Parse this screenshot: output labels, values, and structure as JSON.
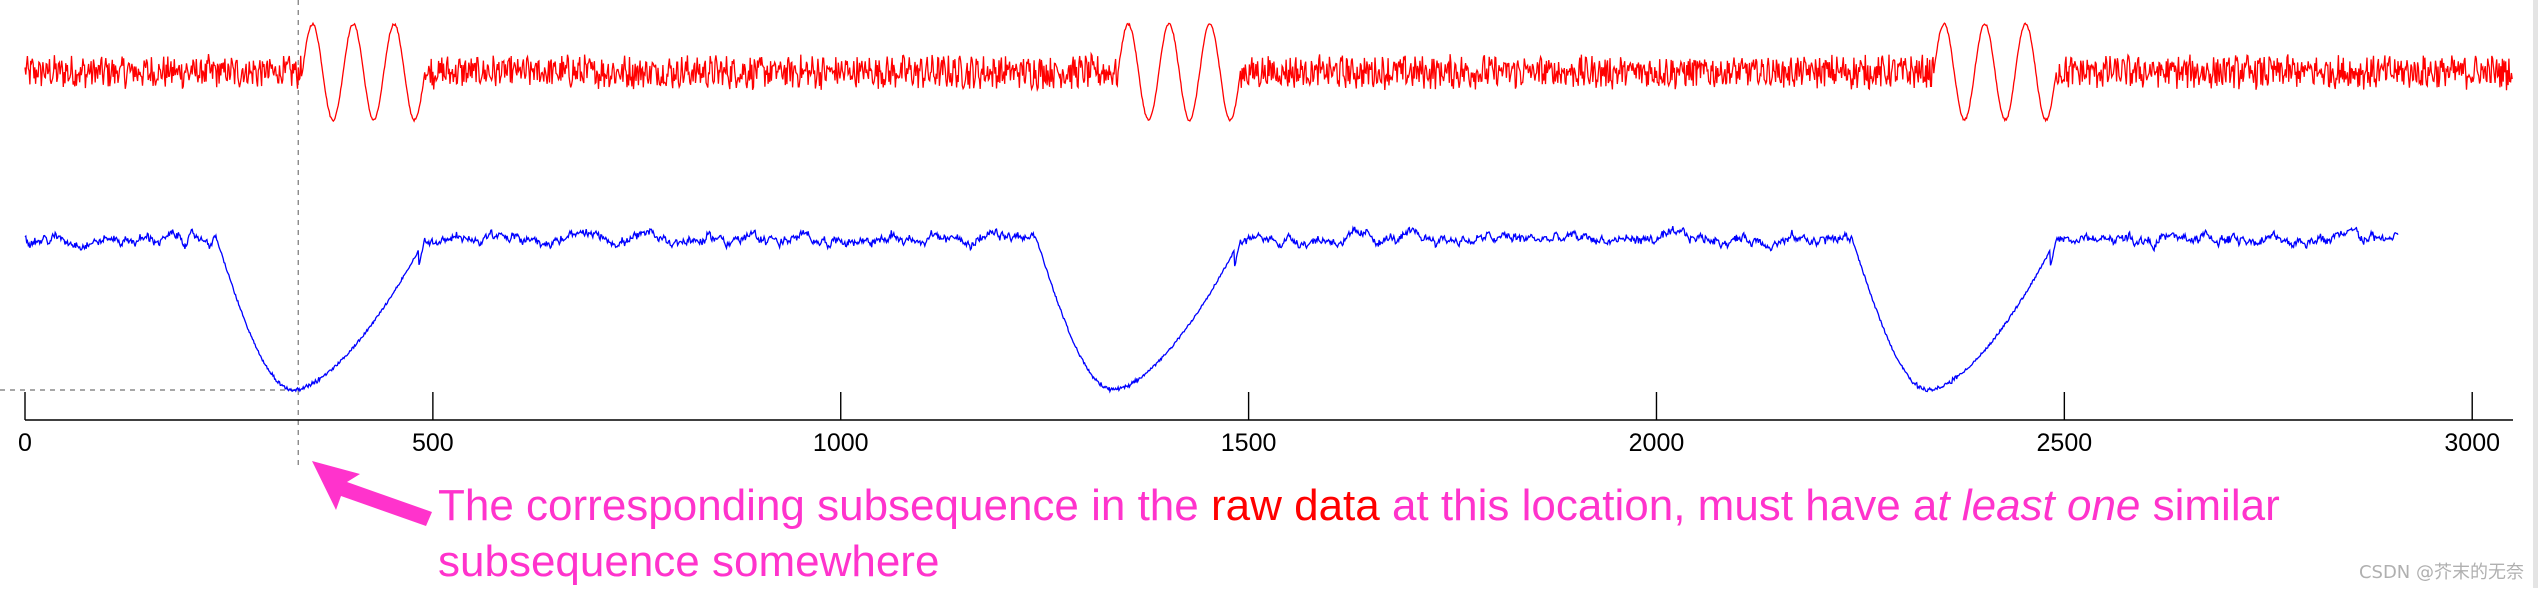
{
  "chart_data": {
    "type": "line",
    "title": "",
    "xlabel": "",
    "ylabel": "",
    "xlim": [
      0,
      3050
    ],
    "x_ticks": [
      0,
      500,
      1000,
      1500,
      2000,
      2500,
      3000
    ],
    "grid": false,
    "y_axis_visible": false,
    "series": [
      {
        "role": "raw-data",
        "color": "#ff0000",
        "length": 3050,
        "noise_amplitude": 0.3,
        "bursts": [
          {
            "start": 340,
            "end": 490,
            "cycles": 3,
            "amplitude": 1.0
          },
          {
            "start": 1340,
            "end": 1490,
            "cycles": 3,
            "amplitude": 1.0
          },
          {
            "start": 2340,
            "end": 2490,
            "cycles": 3,
            "amplitude": 1.0
          }
        ]
      },
      {
        "role": "derived-profile",
        "color": "#0000ff",
        "length": 2910,
        "baseline_noise": 0.06,
        "dips": [
          {
            "from": 235,
            "to": 490,
            "bottom": 330
          },
          {
            "from": 1240,
            "to": 1490,
            "bottom": 1335
          },
          {
            "from": 2240,
            "to": 2490,
            "bottom": 2335
          }
        ]
      }
    ],
    "reference_x": 335,
    "annotation": {
      "part1": "The corresponding subsequence in the ",
      "highlight": "raw data",
      "part2": " at this location, must have a",
      "italic": "t least one",
      "part3": " similar subsequence somewhere",
      "text_color": "#ff33cc",
      "highlight_color": "#ff0000",
      "arrow_color": "#ff33cc"
    }
  },
  "watermark": "CSDN @芥末的无奈"
}
